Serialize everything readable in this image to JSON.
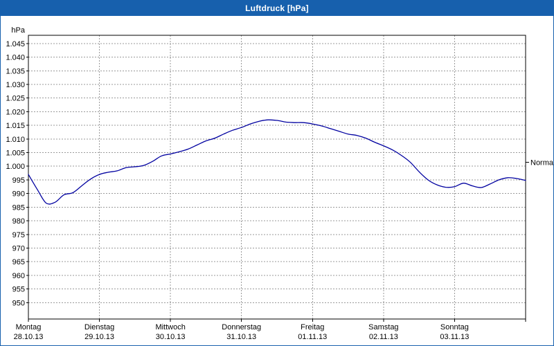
{
  "window": {
    "title": "Luftdruck [hPa]",
    "titlebar_color": "#1760ad"
  },
  "chart_data": {
    "type": "line",
    "title": "Luftdruck [hPa]",
    "ylabel": "hPa",
    "ylim": [
      944,
      1048
    ],
    "grid": "dashed",
    "colors": {
      "grid": "#999999",
      "axis": "#000000",
      "curve": "#0000a0"
    },
    "y_tick_values": [
      1045,
      1040,
      1035,
      1030,
      1025,
      1020,
      1015,
      1010,
      1005,
      1000,
      995,
      990,
      985,
      980,
      975,
      970,
      965,
      960,
      955,
      950
    ],
    "y_tick_labels": [
      "1.045",
      "1.040",
      "1.035",
      "1.030",
      "1.025",
      "1.020",
      "1.015",
      "1.010",
      "1.005",
      "1.000",
      "995",
      "990",
      "985",
      "980",
      "975",
      "970",
      "965",
      "960",
      "955",
      "950"
    ],
    "x_days": [
      {
        "name": "Montag",
        "date": "28.10.13"
      },
      {
        "name": "Dienstag",
        "date": "29.10.13"
      },
      {
        "name": "Mittwoch",
        "date": "30.10.13"
      },
      {
        "name": "Donnerstag",
        "date": "31.10.13"
      },
      {
        "name": "Freitag",
        "date": "01.11.13"
      },
      {
        "name": "Samstag",
        "date": "02.11.13"
      },
      {
        "name": "Sonntag",
        "date": "03.11.13"
      }
    ],
    "sample_interval_hours": 3,
    "series": [
      {
        "name": "Luftdruck",
        "color": "#0000a0",
        "values": [
          997.0,
          991.5,
          986.5,
          986.8,
          989.5,
          990.3,
          992.8,
          995.3,
          997.0,
          997.8,
          998.3,
          999.5,
          999.8,
          1000.3,
          1001.8,
          1003.8,
          1004.5,
          1005.3,
          1006.3,
          1007.8,
          1009.3,
          1010.3,
          1011.8,
          1013.2,
          1014.2,
          1015.5,
          1016.5,
          1017.0,
          1016.8,
          1016.2,
          1016.0,
          1016.0,
          1015.5,
          1014.8,
          1013.8,
          1012.8,
          1011.8,
          1011.3,
          1010.3,
          1008.8,
          1007.5,
          1006.0,
          1004.0,
          1001.5,
          998.0,
          995.0,
          993.2,
          992.3,
          992.5,
          993.8,
          992.8,
          992.2,
          993.5,
          995.0,
          995.8,
          995.5,
          994.8
        ]
      }
    ],
    "normal_marker": {
      "label": "Normal",
      "value": 1001.5
    }
  }
}
